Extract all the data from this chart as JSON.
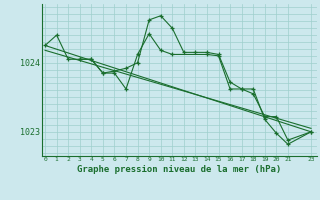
{
  "background_color": "#cce8ed",
  "grid_color": "#9fcfcc",
  "line_color": "#1a6e2e",
  "xlabel": "Graphe pression niveau de la mer (hPa)",
  "xlabel_fontsize": 6.5,
  "ytick_labels": [
    "1023",
    "1024"
  ],
  "ytick_values": [
    1023.0,
    1024.0
  ],
  "ylim": [
    1022.65,
    1024.85
  ],
  "xlim": [
    -0.3,
    23.5
  ],
  "xtick_values": [
    0,
    1,
    2,
    3,
    4,
    5,
    6,
    7,
    8,
    9,
    10,
    11,
    12,
    13,
    14,
    15,
    16,
    17,
    18,
    19,
    20,
    21,
    23
  ],
  "grid_y_values": [
    1022.7,
    1022.8,
    1022.9,
    1023.0,
    1023.1,
    1023.2,
    1023.3,
    1023.4,
    1023.5,
    1023.6,
    1023.7,
    1023.8,
    1023.9,
    1024.0,
    1024.1,
    1024.2,
    1024.3,
    1024.4,
    1024.5,
    1024.6,
    1024.7,
    1024.8
  ],
  "series1_x": [
    0,
    1,
    2,
    3,
    4,
    5,
    6,
    7,
    8,
    9,
    10,
    11,
    12,
    13,
    14,
    15,
    16,
    17,
    18,
    19,
    20,
    21,
    23
  ],
  "series1_y": [
    1024.25,
    1024.4,
    1024.05,
    1024.05,
    1024.05,
    1023.85,
    1023.88,
    1023.92,
    1024.0,
    1024.62,
    1024.68,
    1024.5,
    1024.15,
    1024.15,
    1024.15,
    1024.12,
    1023.72,
    1023.62,
    1023.62,
    1023.18,
    1022.98,
    1022.82,
    1023.0
  ],
  "series2_x": [
    3,
    4,
    5,
    6,
    7,
    8,
    9,
    10,
    11,
    14,
    15,
    16,
    17,
    18,
    19,
    20,
    21,
    23
  ],
  "series2_y": [
    1024.05,
    1024.05,
    1023.85,
    1023.85,
    1023.62,
    1024.12,
    1024.42,
    1024.18,
    1024.12,
    1024.12,
    1024.1,
    1023.62,
    1023.62,
    1023.55,
    1023.22,
    1023.22,
    1022.88,
    1023.0
  ],
  "series3_x": [
    0,
    23
  ],
  "series3_y": [
    1024.25,
    1023.0
  ],
  "series4_x": [
    0,
    23
  ],
  "series4_y": [
    1024.18,
    1023.05
  ]
}
